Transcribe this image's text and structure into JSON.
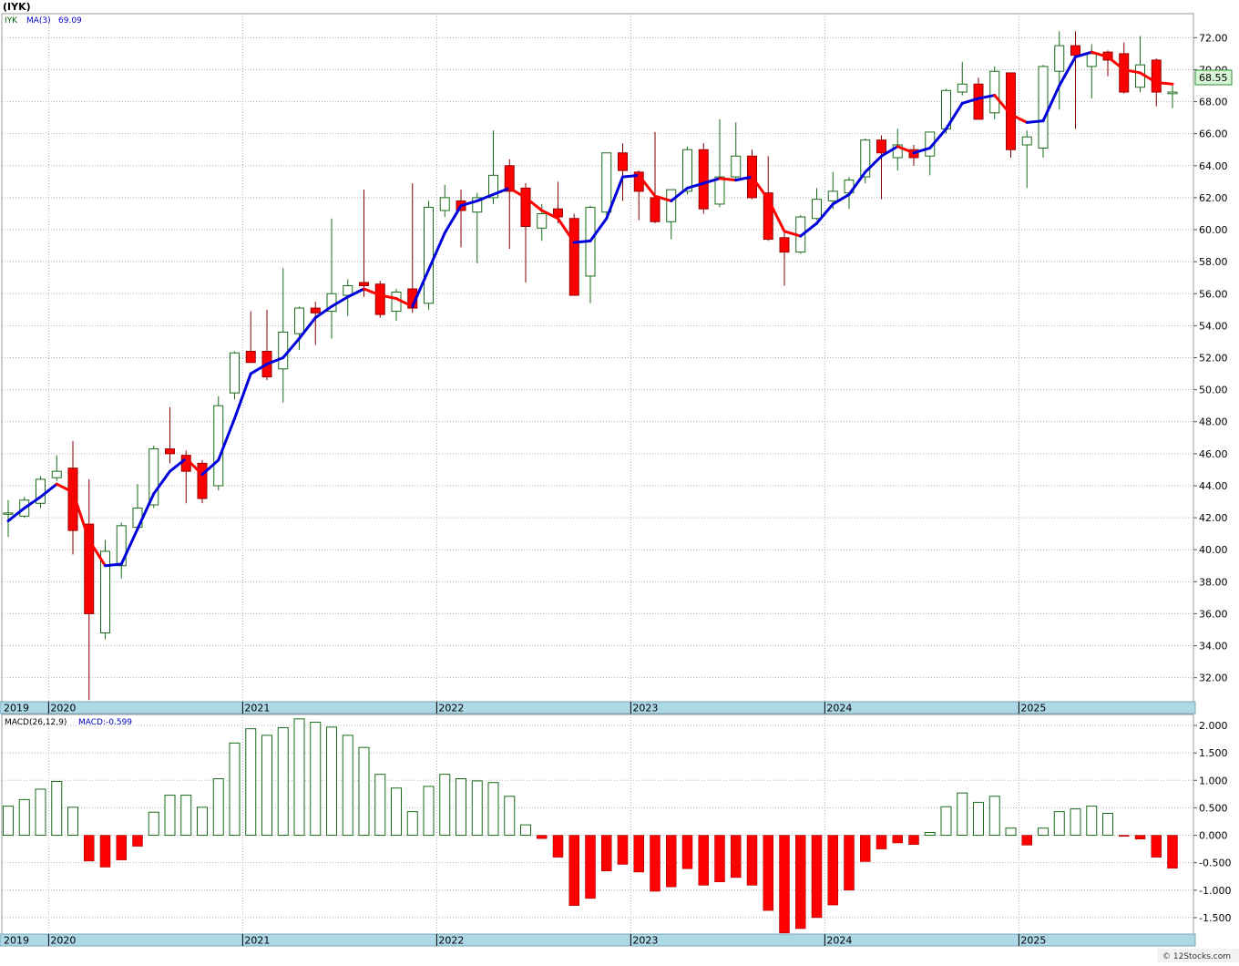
{
  "header": {
    "symbol": "(IYK)",
    "ticker": "IYK",
    "ma_label": "MA(3)",
    "ma_value": "69.09",
    "last_price": "68.55"
  },
  "macd_header": {
    "label": "MACD(26,12,9)",
    "value": "MACD:-0.599"
  },
  "footer": {
    "credit": "© 12Stocks.com"
  },
  "colors": {
    "up": "#1a6b1a",
    "down": "#ff0000",
    "ma_up": "#0000dd",
    "ma_down": "#ff0000",
    "band": "#add8e6",
    "price_tag_bg": "#d8f5d8",
    "price_tag_border": "#2e8b2e"
  },
  "chart_data": [
    {
      "type": "candlestick",
      "period": "monthly",
      "ylim": [
        30.5,
        73.5
      ],
      "yticks": [
        32,
        34,
        36,
        38,
        40,
        42,
        44,
        46,
        48,
        50,
        52,
        54,
        56,
        58,
        60,
        62,
        64,
        66,
        68,
        70,
        72
      ],
      "year_labels": [
        {
          "label": "2019",
          "index": -0.5
        },
        {
          "label": "2020",
          "index": 2.5
        },
        {
          "label": "2021",
          "index": 14.5
        },
        {
          "label": "2022",
          "index": 26.5
        },
        {
          "label": "2023",
          "index": 38.5
        },
        {
          "label": "2024",
          "index": 50.5
        },
        {
          "label": "2025",
          "index": 62.5
        }
      ],
      "candles": [
        {
          "o": 42.3,
          "h": 43.1,
          "l": 40.8,
          "c": 42.3
        },
        {
          "o": 42.1,
          "h": 43.3,
          "l": 42.0,
          "c": 43.1
        },
        {
          "o": 42.9,
          "h": 44.6,
          "l": 42.6,
          "c": 44.4
        },
        {
          "o": 44.5,
          "h": 45.9,
          "l": 44.3,
          "c": 44.9
        },
        {
          "o": 45.1,
          "h": 46.8,
          "l": 39.7,
          "c": 41.2
        },
        {
          "o": 41.6,
          "h": 44.4,
          "l": 30.6,
          "c": 36.0
        },
        {
          "o": 34.8,
          "h": 40.6,
          "l": 34.4,
          "c": 39.9
        },
        {
          "o": 39.0,
          "h": 41.7,
          "l": 38.2,
          "c": 41.5
        },
        {
          "o": 41.4,
          "h": 44.1,
          "l": 41.2,
          "c": 42.6
        },
        {
          "o": 42.8,
          "h": 46.5,
          "l": 42.6,
          "c": 46.3
        },
        {
          "o": 46.3,
          "h": 48.9,
          "l": 45.4,
          "c": 46.0
        },
        {
          "o": 45.9,
          "h": 46.2,
          "l": 42.9,
          "c": 44.9
        },
        {
          "o": 45.4,
          "h": 45.6,
          "l": 42.9,
          "c": 43.2
        },
        {
          "o": 44.0,
          "h": 49.6,
          "l": 43.7,
          "c": 49.0
        },
        {
          "o": 49.8,
          "h": 52.4,
          "l": 49.4,
          "c": 52.3
        },
        {
          "o": 52.4,
          "h": 54.9,
          "l": 51.8,
          "c": 51.7
        },
        {
          "o": 52.4,
          "h": 55.0,
          "l": 50.6,
          "c": 50.8
        },
        {
          "o": 51.3,
          "h": 57.6,
          "l": 49.2,
          "c": 53.6
        },
        {
          "o": 53.5,
          "h": 55.2,
          "l": 52.5,
          "c": 55.1
        },
        {
          "o": 55.1,
          "h": 55.5,
          "l": 52.8,
          "c": 54.8
        },
        {
          "o": 54.9,
          "h": 60.7,
          "l": 53.2,
          "c": 56.0
        },
        {
          "o": 55.9,
          "h": 56.9,
          "l": 54.6,
          "c": 56.5
        },
        {
          "o": 56.7,
          "h": 62.5,
          "l": 55.8,
          "c": 56.5
        },
        {
          "o": 56.6,
          "h": 56.8,
          "l": 54.5,
          "c": 54.7
        },
        {
          "o": 54.9,
          "h": 56.3,
          "l": 54.3,
          "c": 56.1
        },
        {
          "o": 56.3,
          "h": 62.9,
          "l": 54.8,
          "c": 55.1
        },
        {
          "o": 55.4,
          "h": 61.8,
          "l": 55.0,
          "c": 61.4
        },
        {
          "o": 61.2,
          "h": 62.8,
          "l": 60.8,
          "c": 62.0
        },
        {
          "o": 61.8,
          "h": 62.5,
          "l": 58.9,
          "c": 61.2
        },
        {
          "o": 61.1,
          "h": 62.3,
          "l": 57.9,
          "c": 62.0
        },
        {
          "o": 62.0,
          "h": 66.2,
          "l": 61.6,
          "c": 63.4
        },
        {
          "o": 64.0,
          "h": 64.4,
          "l": 58.8,
          "c": 62.4
        },
        {
          "o": 62.6,
          "h": 62.9,
          "l": 56.7,
          "c": 60.2
        },
        {
          "o": 60.1,
          "h": 61.6,
          "l": 59.3,
          "c": 61.0
        },
        {
          "o": 61.3,
          "h": 63.0,
          "l": 60.4,
          "c": 60.8
        },
        {
          "o": 60.7,
          "h": 61.0,
          "l": 56.0,
          "c": 55.9
        },
        {
          "o": 57.1,
          "h": 61.5,
          "l": 55.4,
          "c": 61.4
        },
        {
          "o": 61.1,
          "h": 64.8,
          "l": 60.9,
          "c": 64.8
        },
        {
          "o": 64.8,
          "h": 65.4,
          "l": 61.8,
          "c": 63.7
        },
        {
          "o": 63.6,
          "h": 63.7,
          "l": 60.6,
          "c": 62.4
        },
        {
          "o": 62.0,
          "h": 66.1,
          "l": 60.4,
          "c": 60.5
        },
        {
          "o": 60.5,
          "h": 62.4,
          "l": 59.4,
          "c": 62.5
        },
        {
          "o": 62.4,
          "h": 65.2,
          "l": 62.2,
          "c": 65.0
        },
        {
          "o": 65.0,
          "h": 65.4,
          "l": 61.0,
          "c": 61.3
        },
        {
          "o": 61.6,
          "h": 66.9,
          "l": 61.4,
          "c": 63.3
        },
        {
          "o": 63.3,
          "h": 66.7,
          "l": 63.0,
          "c": 64.6
        },
        {
          "o": 64.6,
          "h": 65.0,
          "l": 61.9,
          "c": 62.0
        },
        {
          "o": 62.3,
          "h": 64.6,
          "l": 59.3,
          "c": 59.4
        },
        {
          "o": 59.5,
          "h": 59.8,
          "l": 56.5,
          "c": 58.6
        },
        {
          "o": 58.6,
          "h": 60.9,
          "l": 58.5,
          "c": 60.8
        },
        {
          "o": 60.7,
          "h": 62.6,
          "l": 60.6,
          "c": 61.9
        },
        {
          "o": 61.8,
          "h": 63.6,
          "l": 61.3,
          "c": 62.4
        },
        {
          "o": 62.3,
          "h": 63.3,
          "l": 61.3,
          "c": 63.1
        },
        {
          "o": 63.3,
          "h": 65.7,
          "l": 62.9,
          "c": 65.6
        },
        {
          "o": 65.6,
          "h": 65.9,
          "l": 61.9,
          "c": 64.8
        },
        {
          "o": 64.5,
          "h": 66.3,
          "l": 63.7,
          "c": 65.3
        },
        {
          "o": 65.0,
          "h": 65.3,
          "l": 64.0,
          "c": 64.5
        },
        {
          "o": 64.6,
          "h": 66.1,
          "l": 63.4,
          "c": 66.1
        },
        {
          "o": 66.3,
          "h": 68.8,
          "l": 66.0,
          "c": 68.7
        },
        {
          "o": 68.6,
          "h": 70.5,
          "l": 68.4,
          "c": 69.1
        },
        {
          "o": 69.1,
          "h": 69.5,
          "l": 66.9,
          "c": 66.9
        },
        {
          "o": 67.3,
          "h": 70.2,
          "l": 66.9,
          "c": 69.9
        },
        {
          "o": 69.8,
          "h": 69.8,
          "l": 64.5,
          "c": 65.0
        },
        {
          "o": 65.3,
          "h": 66.2,
          "l": 62.6,
          "c": 65.8
        },
        {
          "o": 65.1,
          "h": 70.3,
          "l": 64.5,
          "c": 70.2
        },
        {
          "o": 69.9,
          "h": 72.4,
          "l": 67.5,
          "c": 71.5
        },
        {
          "o": 71.5,
          "h": 72.4,
          "l": 66.3,
          "c": 70.9
        },
        {
          "o": 70.2,
          "h": 71.6,
          "l": 68.2,
          "c": 71.0
        },
        {
          "o": 71.1,
          "h": 71.2,
          "l": 69.6,
          "c": 70.6
        },
        {
          "o": 71.0,
          "h": 71.7,
          "l": 68.5,
          "c": 68.6
        },
        {
          "o": 68.9,
          "h": 72.1,
          "l": 68.6,
          "c": 70.3
        },
        {
          "o": 70.6,
          "h": 70.7,
          "l": 67.7,
          "c": 68.6
        },
        {
          "o": 68.5,
          "h": 69.0,
          "l": 67.6,
          "c": 68.6
        }
      ],
      "moving_average": {
        "name": "MA(3)",
        "values": [
          41.8,
          42.6,
          43.3,
          44.1,
          43.6,
          40.6,
          39.0,
          39.1,
          41.3,
          43.5,
          44.9,
          45.7,
          44.7,
          45.6,
          48.2,
          51.0,
          51.6,
          52.0,
          53.2,
          54.5,
          55.2,
          55.8,
          56.3,
          55.9,
          55.7,
          55.2,
          57.5,
          59.8,
          61.5,
          61.8,
          62.2,
          62.6,
          62.0,
          61.2,
          60.7,
          59.2,
          59.3,
          60.7,
          63.3,
          63.4,
          62.1,
          61.8,
          62.6,
          62.9,
          63.2,
          63.1,
          63.3,
          61.9,
          59.9,
          59.6,
          60.4,
          61.6,
          62.2,
          63.6,
          64.6,
          65.2,
          64.8,
          65.1,
          66.3,
          67.9,
          68.2,
          68.4,
          67.2,
          66.7,
          66.8,
          69.0,
          70.8,
          71.1,
          70.8,
          70.0,
          69.8,
          69.2,
          69.1
        ]
      }
    },
    {
      "type": "bar",
      "name": "MACD(26,12,9)",
      "ylim": [
        -1.8,
        2.2
      ],
      "yticks": [
        -1.5,
        -1.0,
        -0.5,
        0.0,
        0.5,
        1.0,
        1.5,
        2.0
      ],
      "ytick_labels": [
        "-1.500",
        "-1.000",
        "-0.500",
        "0.000",
        "0.500",
        "1.000",
        "1.500",
        "2.000"
      ],
      "values": [
        0.53,
        0.65,
        0.84,
        0.98,
        0.51,
        -0.47,
        -0.58,
        -0.45,
        -0.2,
        0.42,
        0.73,
        0.73,
        0.51,
        1.03,
        1.68,
        1.94,
        1.82,
        1.96,
        2.12,
        2.06,
        1.97,
        1.82,
        1.6,
        1.11,
        0.86,
        0.43,
        0.89,
        1.11,
        1.03,
        0.99,
        0.96,
        0.71,
        0.19,
        -0.06,
        -0.4,
        -1.28,
        -1.15,
        -0.65,
        -0.53,
        -0.67,
        -1.02,
        -0.94,
        -0.61,
        -0.91,
        -0.85,
        -0.77,
        -0.91,
        -1.37,
        -1.78,
        -1.7,
        -1.5,
        -1.27,
        -1.0,
        -0.48,
        -0.25,
        -0.14,
        -0.17,
        0.05,
        0.52,
        0.77,
        0.6,
        0.71,
        0.13,
        -0.18,
        0.13,
        0.43,
        0.48,
        0.53,
        0.4,
        -0.02,
        -0.07,
        -0.4,
        -0.6
      ]
    }
  ]
}
